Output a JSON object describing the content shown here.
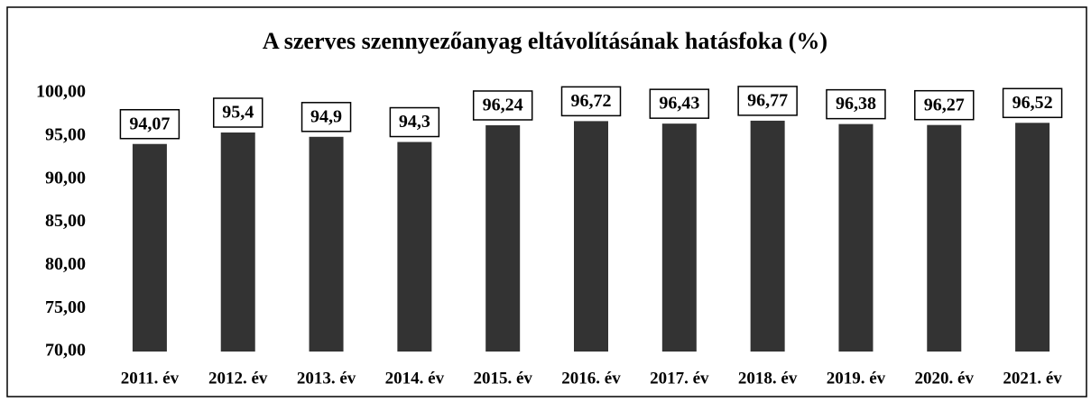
{
  "chart_data": {
    "type": "bar",
    "title": "A szerves szennyezőanyag eltávolításának hatásfoka (%)",
    "categories": [
      "2011. év",
      "2012. év",
      "2013. év",
      "2014. év",
      "2015. év",
      "2016. év",
      "2017. év",
      "2018. év",
      "2019. év",
      "2020. év",
      "2021. év"
    ],
    "values": [
      94.07,
      95.4,
      94.9,
      94.3,
      96.24,
      96.72,
      96.43,
      96.77,
      96.38,
      96.27,
      96.52
    ],
    "value_labels": [
      "94,07",
      "95,4",
      "94,9",
      "94,3",
      "96,24",
      "96,72",
      "96,43",
      "96,77",
      "96,38",
      "96,27",
      "96,52"
    ],
    "color": "#333333",
    "ylim": [
      70,
      100
    ],
    "yticks": [
      {
        "value": 70,
        "label": "70,00"
      },
      {
        "value": 75,
        "label": "75,00"
      },
      {
        "value": 80,
        "label": "80,00"
      },
      {
        "value": 85,
        "label": "85,00"
      },
      {
        "value": 90,
        "label": "90,00"
      },
      {
        "value": 95,
        "label": "95,00"
      },
      {
        "value": 100,
        "label": "100,00"
      }
    ],
    "grid": false
  }
}
